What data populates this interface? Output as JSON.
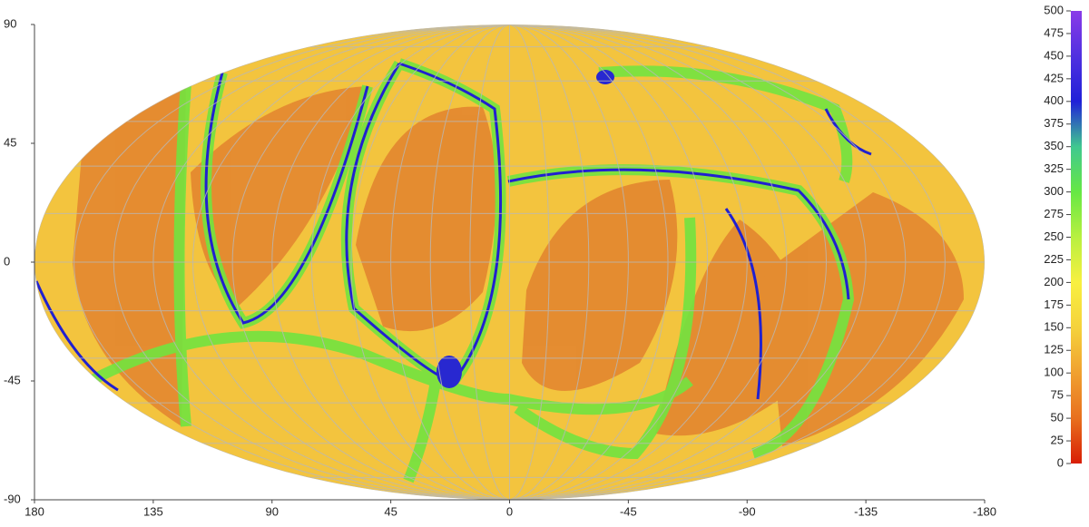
{
  "chart_data": {
    "type": "skymap",
    "xlim": [
      180,
      -180
    ],
    "xticks": [
      180,
      135,
      90,
      45,
      0,
      -45,
      -90,
      -135,
      -180
    ],
    "ylim": [
      -90,
      90
    ],
    "yticks": [
      -90,
      -45,
      0,
      45,
      90
    ],
    "colorbar": {
      "lim": [
        0,
        500
      ],
      "ticks": [
        0,
        25,
        50,
        75,
        100,
        125,
        150,
        175,
        200,
        225,
        250,
        275,
        300,
        325,
        350,
        375,
        400,
        425,
        450,
        475,
        500
      ],
      "colors": [
        "#d81e05",
        "#e8701e",
        "#f0a030",
        "#f5d23c",
        "#f8f040",
        "#b8f040",
        "#66e844",
        "#40c890",
        "#2020d8",
        "#5030e0",
        "#8a3ae8"
      ]
    }
  }
}
